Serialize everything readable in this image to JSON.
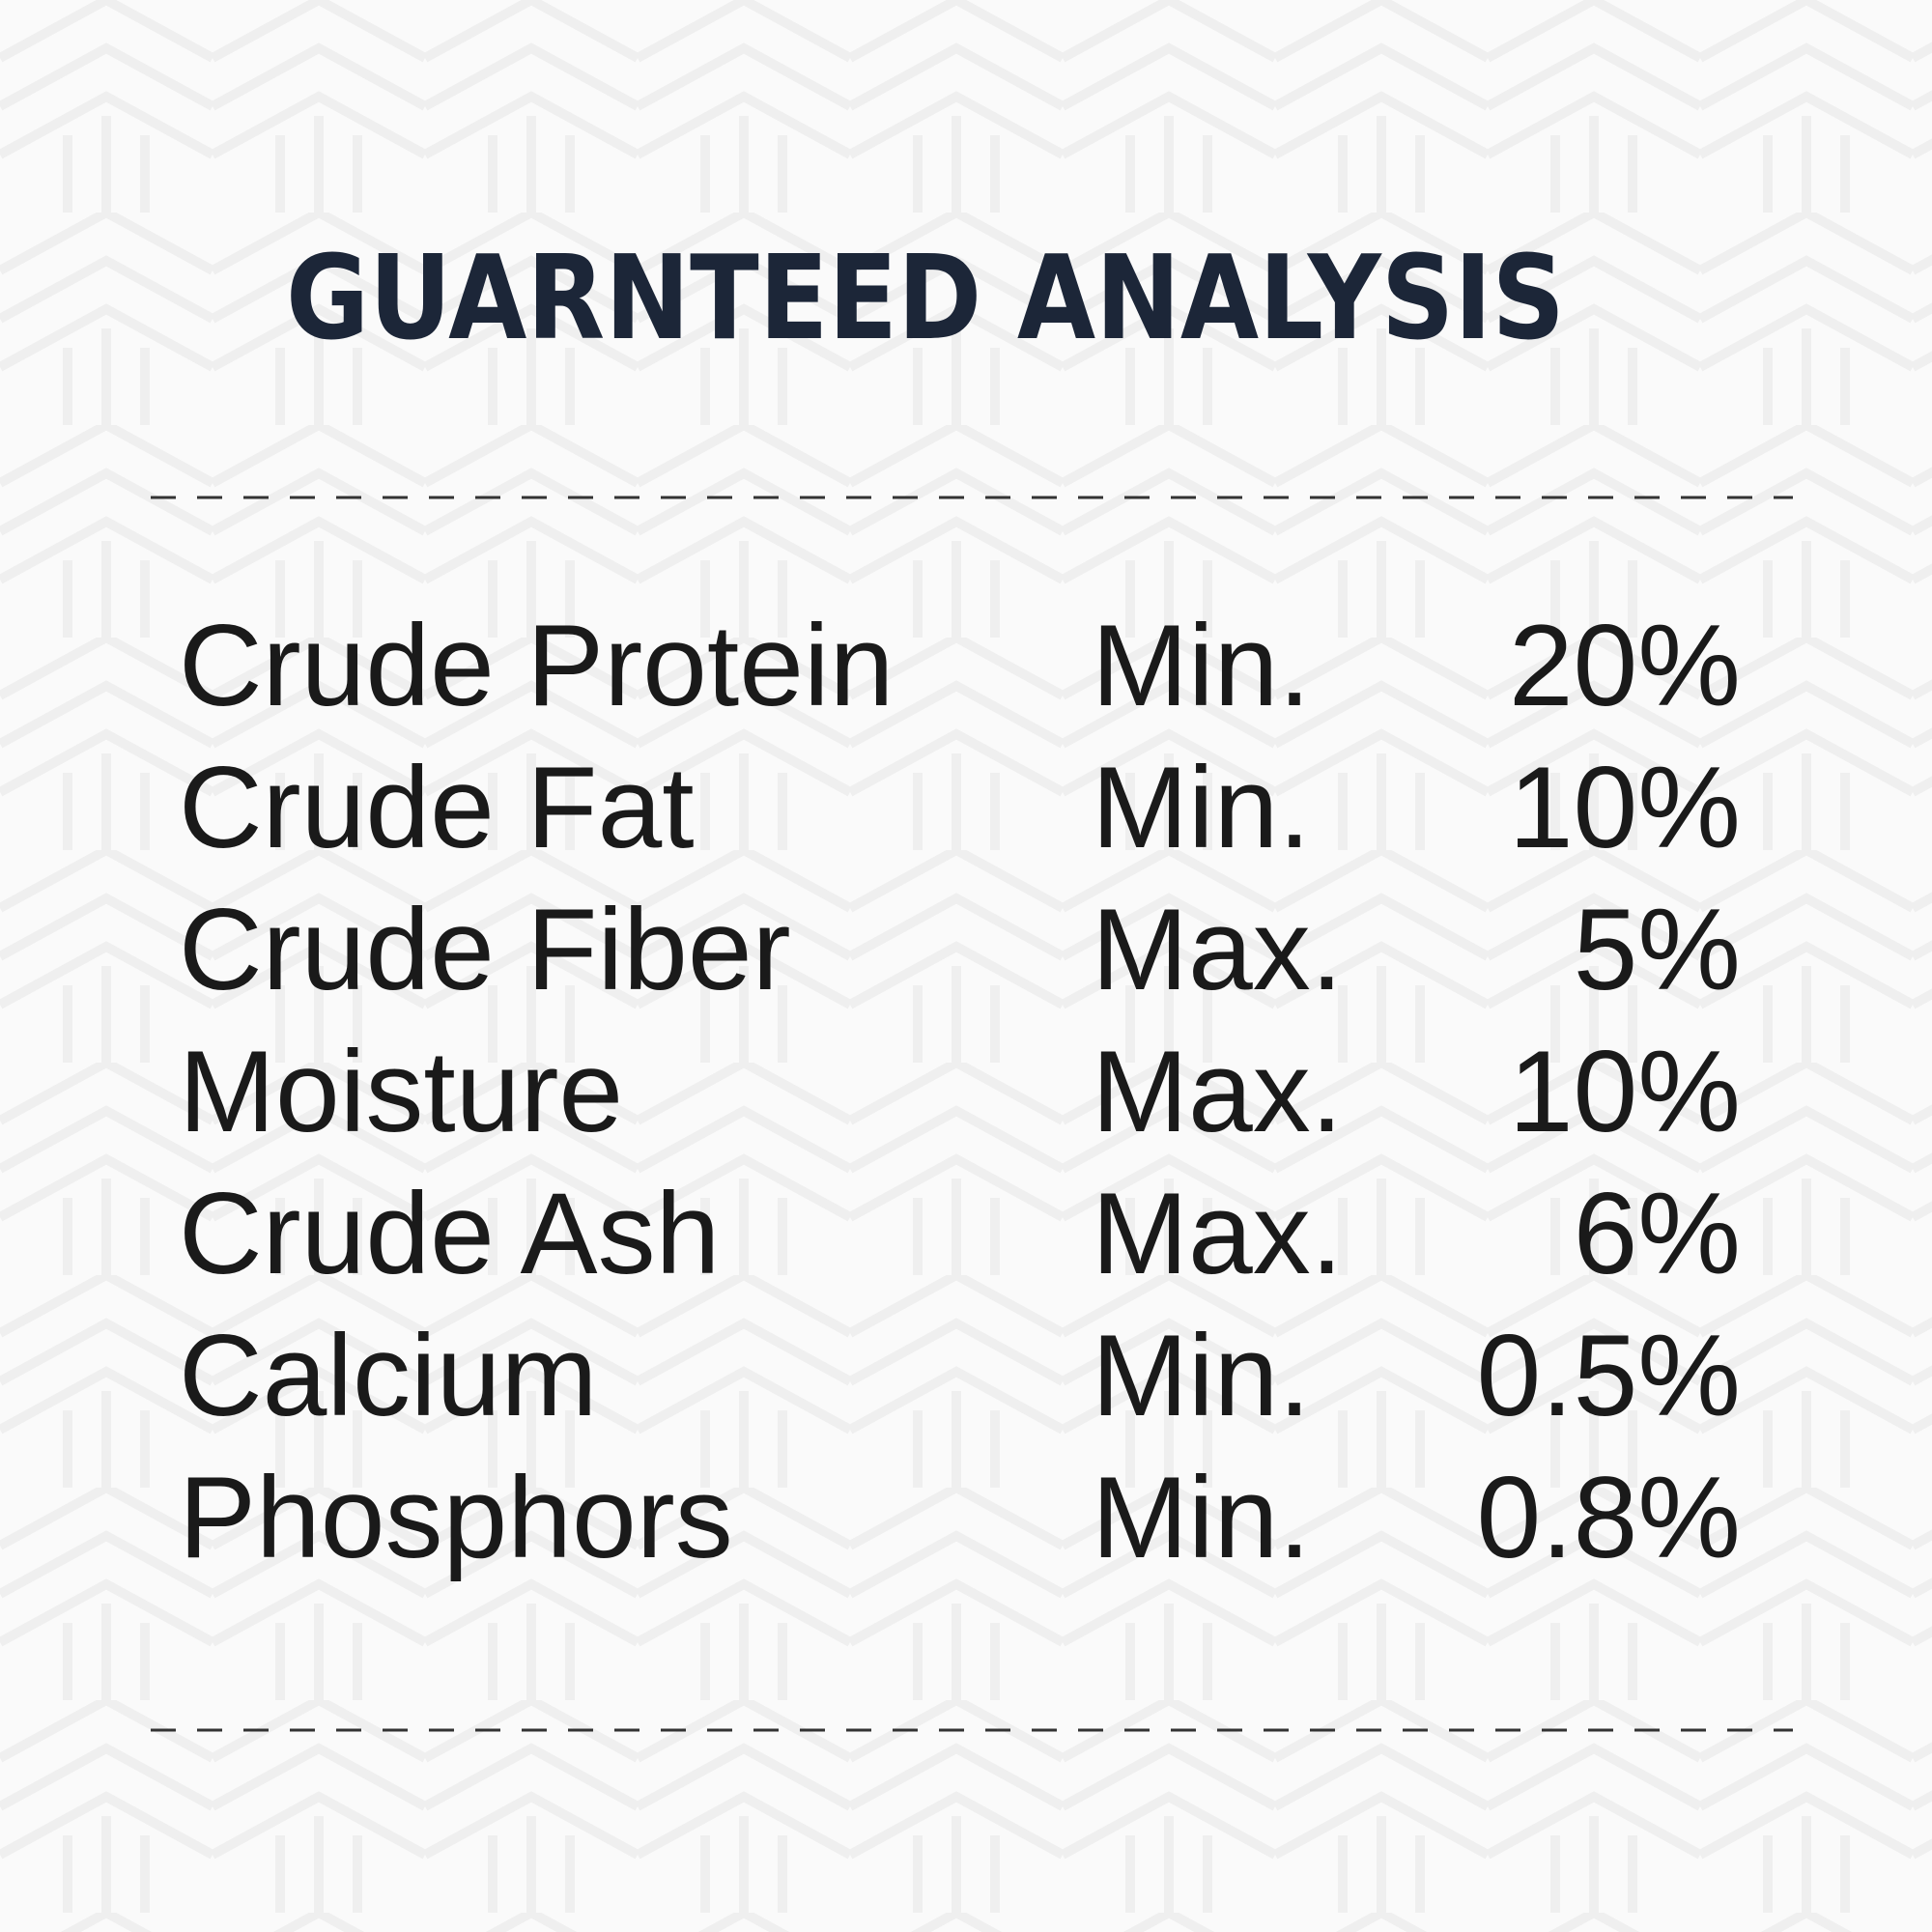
{
  "header": {
    "title": "GUARNTEED ANALYSIS"
  },
  "table": {
    "rows": [
      [
        "Crude Protein",
        "Min.",
        "20%"
      ],
      [
        "Crude Fat",
        "Min.",
        "10%"
      ],
      [
        "Crude Fiber",
        "Max.",
        "5%"
      ],
      [
        "Moisture",
        "Max.",
        "10%"
      ],
      [
        "Crude Ash",
        "Max.",
        "6%"
      ],
      [
        "Calcium",
        "Min.",
        "0.5%"
      ],
      [
        "Phosphors",
        "Min.",
        "0.8%"
      ]
    ]
  }
}
